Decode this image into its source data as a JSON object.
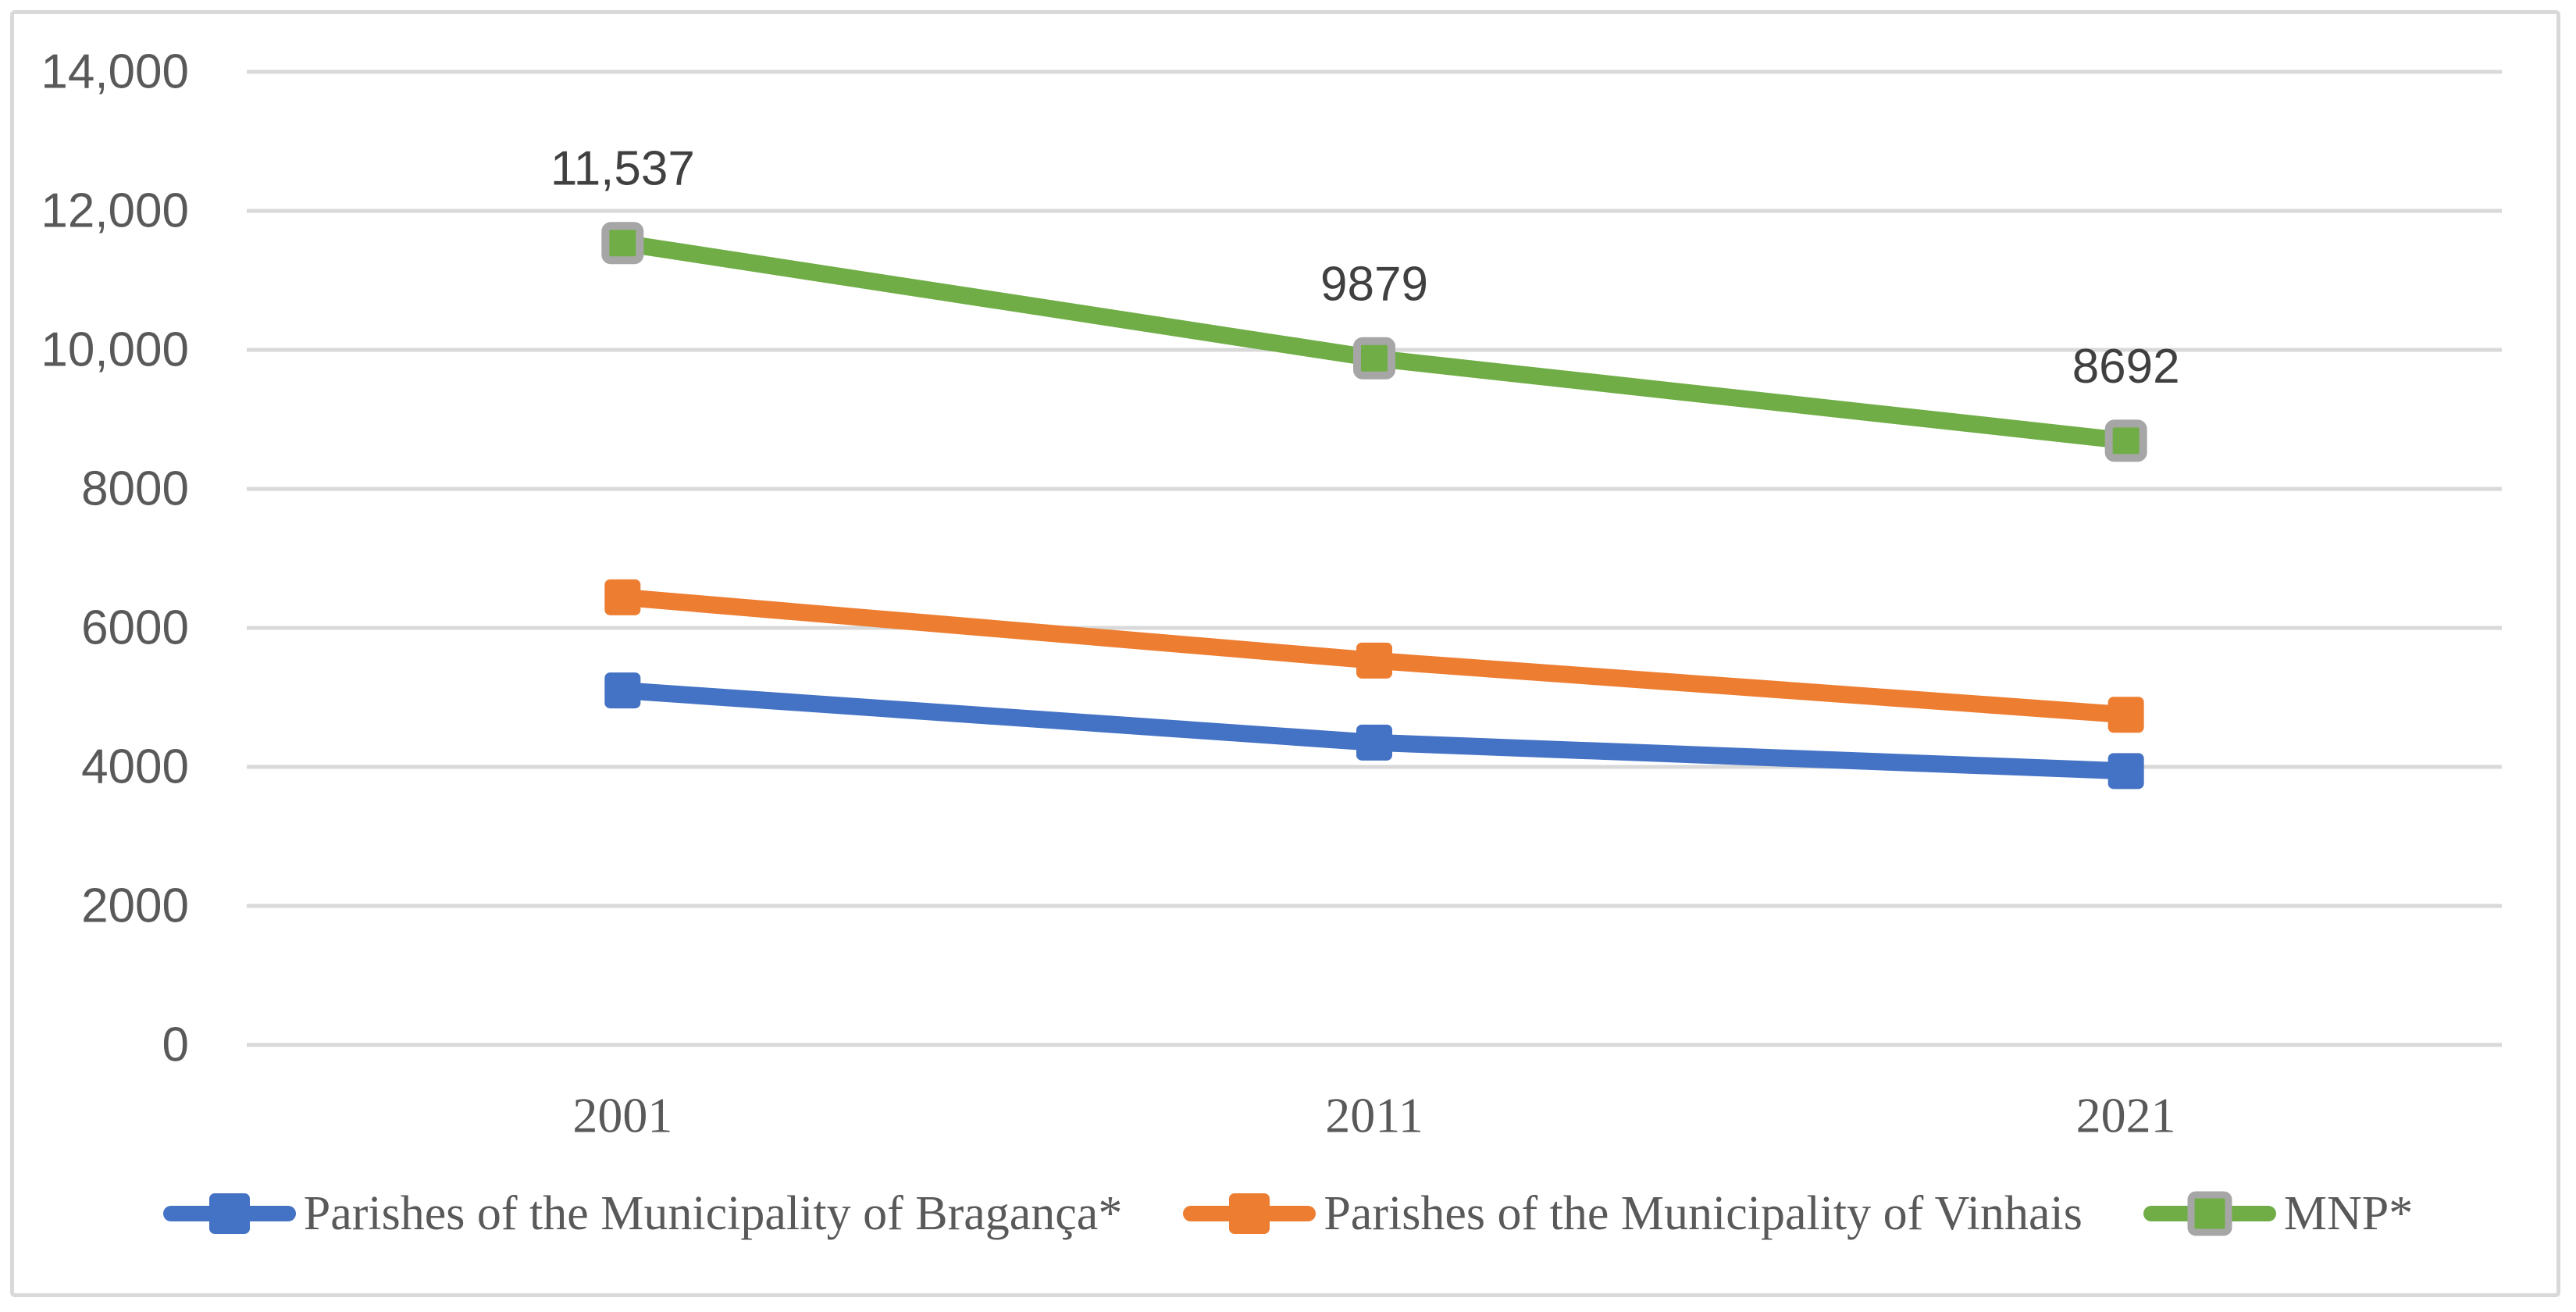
{
  "figure": {
    "background_color": "#ffffff",
    "border_color": "#d9d9d9"
  },
  "chart_data": {
    "type": "line",
    "title": "",
    "xlabel": "",
    "ylabel": "",
    "categories": [
      "2001",
      "2011",
      "2021"
    ],
    "series": [
      {
        "name": "Parishes of the Municipality of Bragança*",
        "color": "#4472c4",
        "marker": "square",
        "marker_border": "#4472c4",
        "values": [
          5100,
          4350,
          3940
        ],
        "data_labels": [
          "",
          "",
          ""
        ]
      },
      {
        "name": "Parishes of the Municipality of Vinhais",
        "color": "#ed7d31",
        "marker": "square",
        "marker_border": "#ed7d31",
        "values": [
          6440,
          5530,
          4750
        ],
        "data_labels": [
          "",
          "",
          ""
        ]
      },
      {
        "name": "MNP*",
        "color": "#70ad47",
        "marker": "square",
        "marker_border": "#a6a6a6",
        "values": [
          11537,
          9879,
          8692
        ],
        "data_labels": [
          "11,537",
          "9879",
          "8692"
        ]
      }
    ],
    "y_axis": {
      "min": 0,
      "max": 14000,
      "ticks": [
        {
          "label": "0",
          "value": 0
        },
        {
          "label": "2000",
          "value": 2000
        },
        {
          "label": "4000",
          "value": 4000
        },
        {
          "label": "6000",
          "value": 6000
        },
        {
          "label": "8000",
          "value": 8000
        },
        {
          "label": "10,000",
          "value": 10000
        },
        {
          "label": "12,000",
          "value": 12000
        },
        {
          "label": "14,000",
          "value": 14000
        }
      ],
      "label_color": "#595959"
    },
    "x_axis": {
      "labels": [
        "2001",
        "2011",
        "2021"
      ],
      "label_color": "#595959"
    },
    "grid": true,
    "gridline_color": "#d9d9d9",
    "data_label_color": "#404040",
    "legend_position": "bottom"
  }
}
